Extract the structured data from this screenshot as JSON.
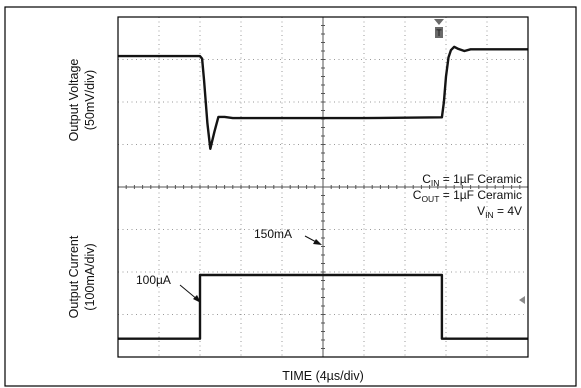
{
  "chart_data": {
    "type": "line",
    "title": "",
    "xlabel": "TIME (4µs/div)",
    "x_divisions": 10,
    "colors": {
      "trace": "#141414",
      "grid": "#9a9a9a",
      "frame": "#000000"
    },
    "panels": [
      {
        "ylabel_line1": "Output Voltage",
        "ylabel_line2": "(50mV/div)",
        "ylim": [
          -2,
          2
        ],
        "series": [
          {
            "x": [
              0,
              2.0,
              2.05,
              2.1,
              2.18,
              2.25,
              2.35,
              2.45,
              2.6,
              2.8,
              3.0,
              4,
              5,
              6,
              7,
              7.9,
              7.95,
              8.0,
              8.06,
              8.12,
              8.2,
              8.3,
              8.45,
              8.6,
              8.8,
              9,
              10
            ],
            "y": [
              1.08,
              1.08,
              1.02,
              0.5,
              -0.5,
              -1.1,
              -0.7,
              -0.35,
              -0.35,
              -0.38,
              -0.38,
              -0.38,
              -0.38,
              -0.38,
              -0.37,
              -0.36,
              0.0,
              0.6,
              1.05,
              1.22,
              1.3,
              1.25,
              1.2,
              1.24,
              1.24,
              1.24,
              1.24
            ]
          }
        ]
      },
      {
        "ylabel_line1": "Output Current",
        "ylabel_line2": "(100mA/div)",
        "ylim": [
          -2,
          2
        ],
        "series": [
          {
            "x": [
              0,
              2.0,
              2.0,
              7.9,
              7.9,
              10
            ],
            "y": [
              -1.57,
              -1.57,
              -0.07,
              -0.07,
              -1.57,
              -1.57
            ]
          }
        ]
      }
    ],
    "annotations": {
      "current_low": "100µA",
      "current_high": "150mA",
      "cin_main": "C",
      "cin_sub": "IN",
      "cin_rest": " = 1µF Ceramic",
      "cout_main": "C",
      "cout_sub": "OUT",
      "cout_rest": " = 1µF Ceramic",
      "vin_main": "V",
      "vin_sub": "IN",
      "vin_rest": " = 4V"
    }
  }
}
